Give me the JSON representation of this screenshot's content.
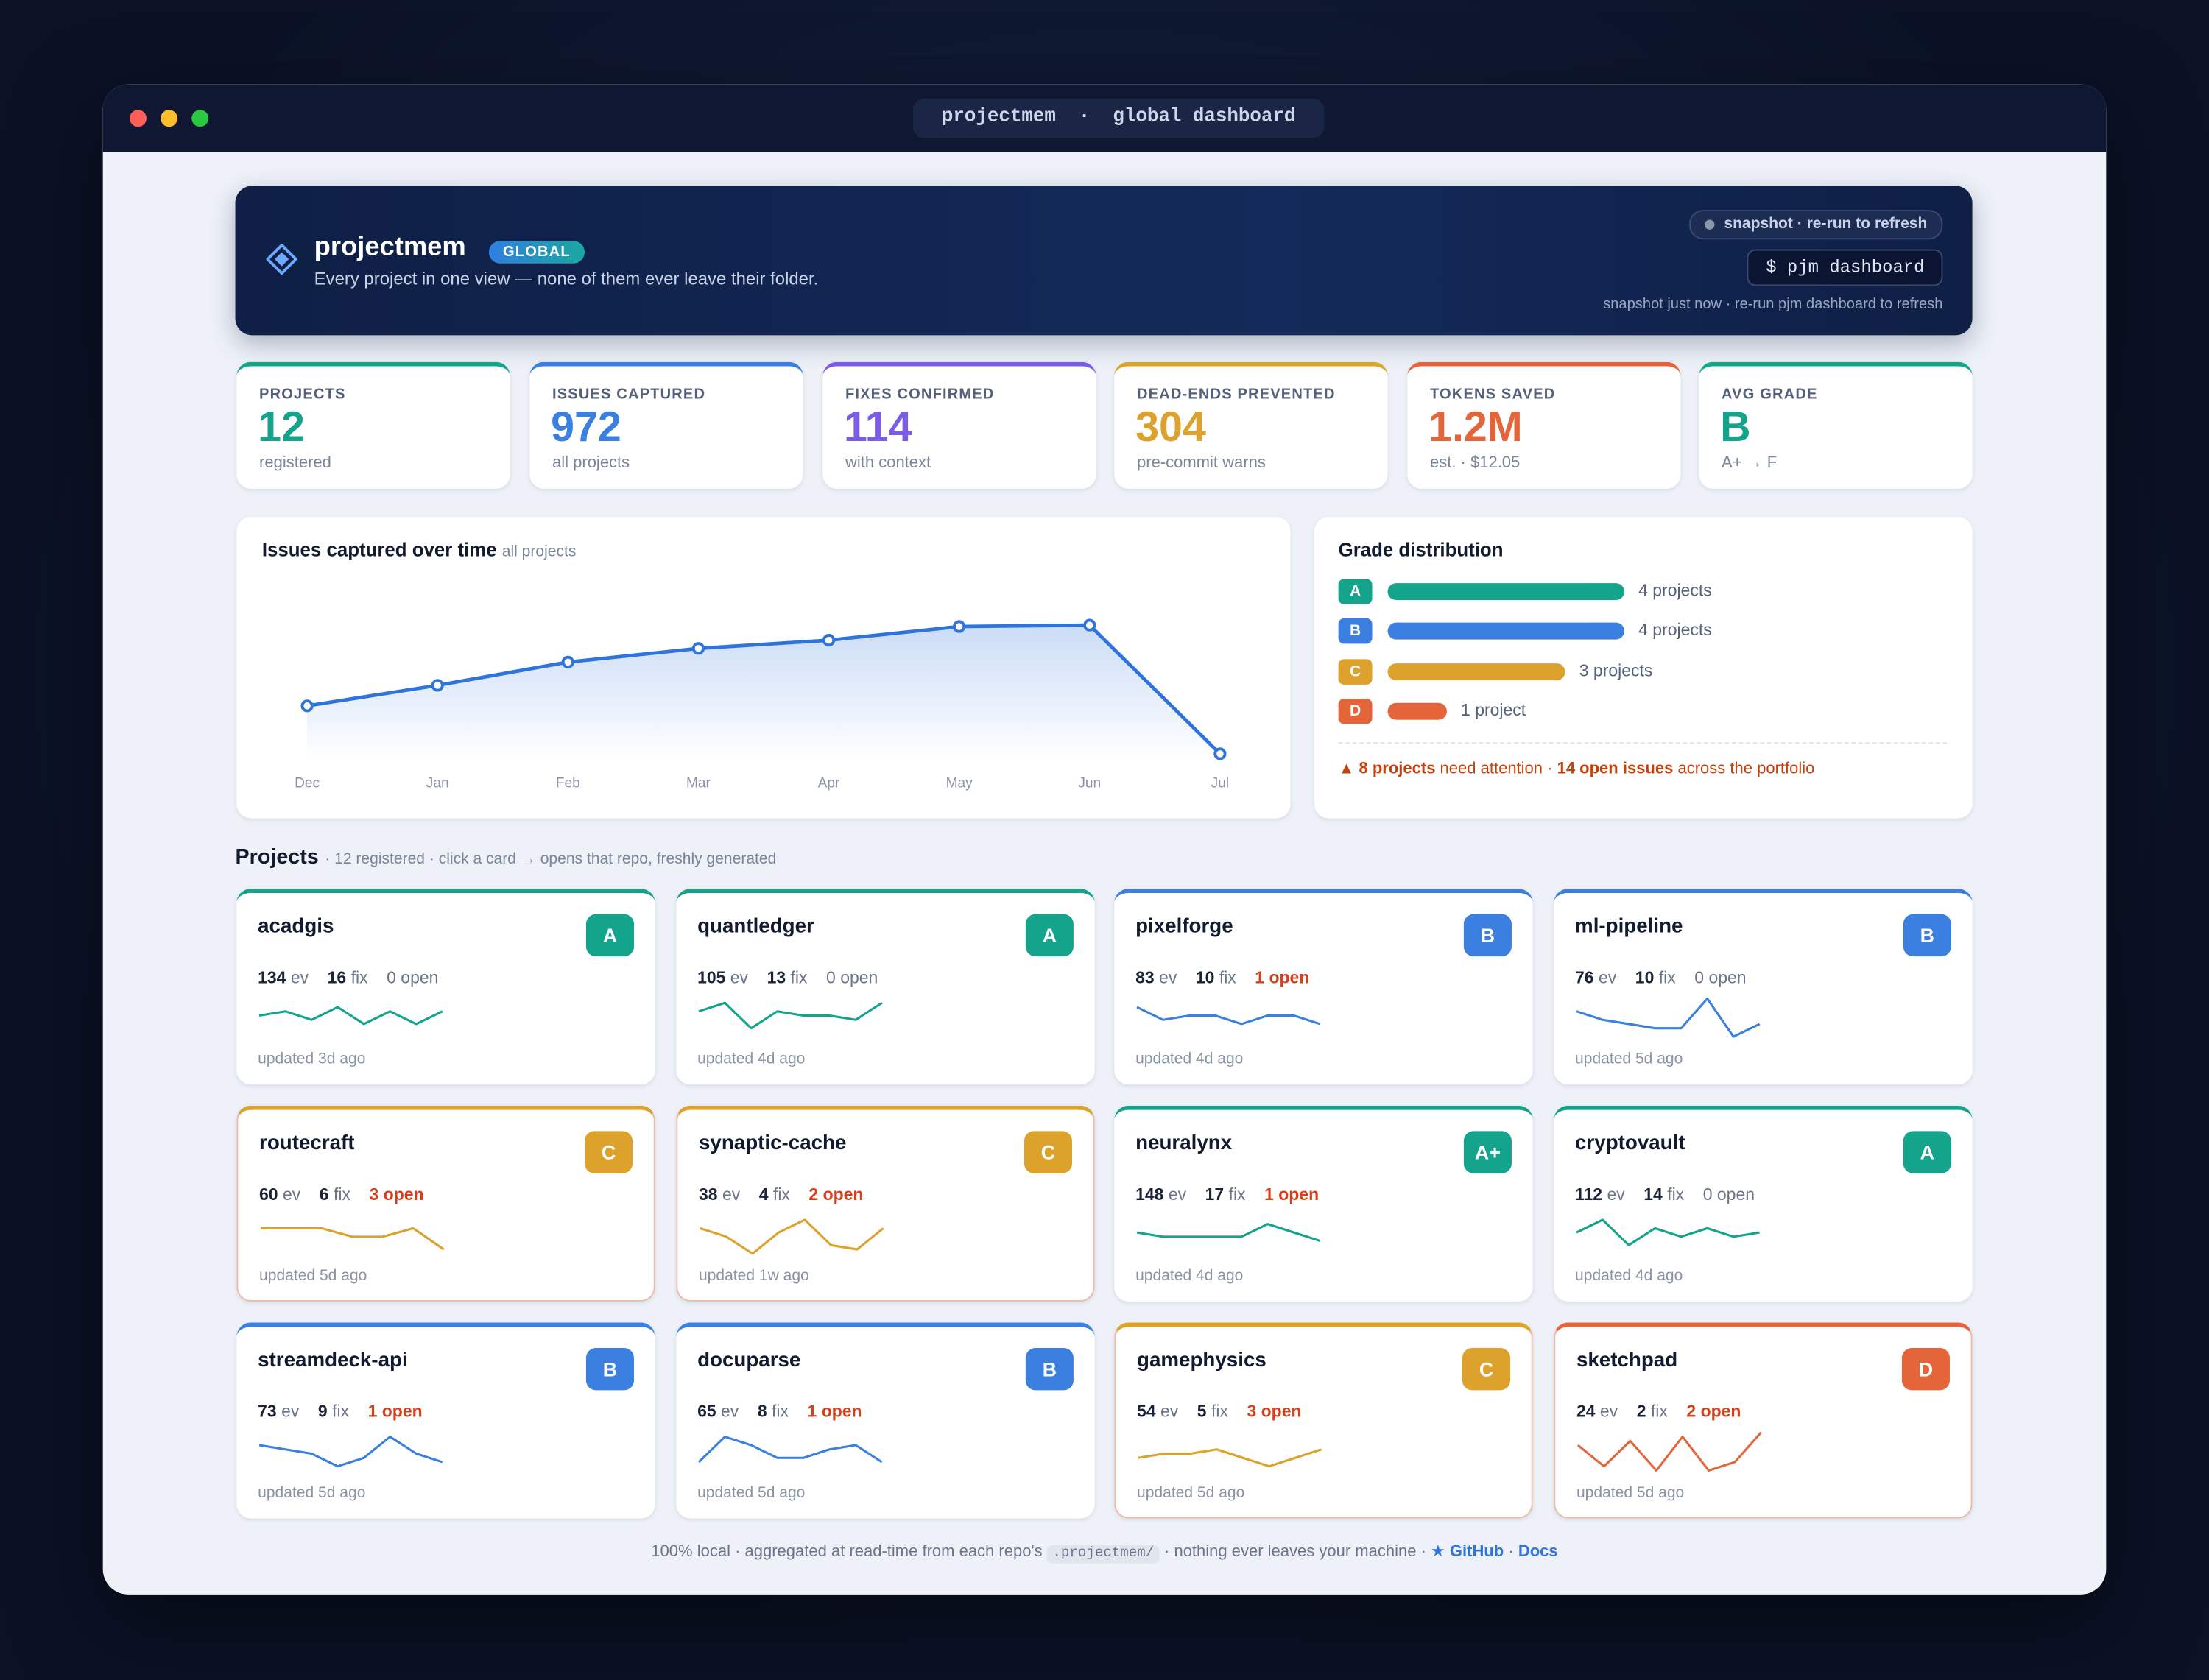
{
  "window": {
    "title": "projectmem  ·  global dashboard"
  },
  "header": {
    "title": "projectmem",
    "badge": "GLOBAL",
    "subtitle": "Every project in one view — none of them ever leave their folder.",
    "status": "snapshot · re-run to refresh",
    "command": "$ pjm dashboard",
    "note": "snapshot just now · re-run pjm dashboard to refresh"
  },
  "stats": [
    {
      "label": "PROJECTS",
      "value": "12",
      "sub": "registered",
      "color": "#14a38b"
    },
    {
      "label": "ISSUES CAPTURED",
      "value": "972",
      "sub": "all projects",
      "color": "#3b7fe0"
    },
    {
      "label": "FIXES CONFIRMED",
      "value": "114",
      "sub": "with context",
      "color": "#7c5ce6"
    },
    {
      "label": "DEAD-ENDS PREVENTED",
      "value": "304",
      "sub": "pre-commit warns",
      "color": "#dca22c"
    },
    {
      "label": "TOKENS SAVED",
      "value": "1.2M",
      "sub": "est. · $12.05",
      "color": "#e4653a"
    },
    {
      "label": "AVG GRADE",
      "value": "B",
      "sub": "A+ → F",
      "color": "#14a38b"
    }
  ],
  "chart_data": {
    "type": "line",
    "title": "Issues captured over time",
    "subtitle": "all projects",
    "categories": [
      "Dec",
      "Jan",
      "Feb",
      "Mar",
      "Apr",
      "May",
      "Jun",
      "Jul"
    ],
    "values": [
      40,
      55,
      72,
      82,
      88,
      98,
      99,
      5
    ],
    "color": "#2f74db",
    "ylim": [
      0,
      105
    ]
  },
  "grades": {
    "title": "Grade distribution",
    "max": 4,
    "rows": [
      {
        "grade": "A",
        "count": 4,
        "label": "4 projects",
        "color": "#14a38b"
      },
      {
        "grade": "B",
        "count": 4,
        "label": "4 projects",
        "color": "#3b7fe0"
      },
      {
        "grade": "C",
        "count": 3,
        "label": "3 projects",
        "color": "#dca22c"
      },
      {
        "grade": "D",
        "count": 1,
        "label": "1 project",
        "color": "#e4653a"
      }
    ],
    "attention": [
      "▲ ",
      "8 projects",
      " need attention · ",
      "14 open issues",
      " across the portfolio"
    ]
  },
  "projects_section": {
    "title": "Projects",
    "subtitle": "· 12 registered · click a card → opens that repo, freshly generated",
    "ev_label": "ev",
    "fix_label": "fix",
    "open_label": "open",
    "sparkline_ylim": [
      0,
      10
    ],
    "grade_colors": {
      "A+": "#14a38b",
      "A": "#14a38b",
      "B": "#3b7fe0",
      "C": "#dca22c",
      "D": "#e4653a"
    },
    "projects": [
      {
        "name": "acadgis",
        "grade": "A",
        "events": 134,
        "fixes": 16,
        "open": 0,
        "updated": "updated 3d ago",
        "trend": [
          5,
          6,
          4,
          7,
          3,
          6,
          3,
          6
        ]
      },
      {
        "name": "quantledger",
        "grade": "A",
        "events": 105,
        "fixes": 13,
        "open": 0,
        "updated": "updated 4d ago",
        "trend": [
          6,
          8,
          2,
          6,
          5,
          5,
          4,
          8
        ]
      },
      {
        "name": "pixelforge",
        "grade": "B",
        "events": 83,
        "fixes": 10,
        "open": 1,
        "updated": "updated 4d ago",
        "trend": [
          7,
          4,
          5,
          5,
          3,
          5,
          5,
          3
        ]
      },
      {
        "name": "ml-pipeline",
        "grade": "B",
        "events": 76,
        "fixes": 10,
        "open": 0,
        "updated": "updated 5d ago",
        "trend": [
          6,
          4,
          3,
          2,
          2,
          9,
          0,
          3
        ]
      },
      {
        "name": "routecraft",
        "grade": "C",
        "events": 60,
        "fixes": 6,
        "open": 3,
        "updated": "updated 5d ago",
        "trend": [
          6,
          6,
          6,
          4,
          4,
          6,
          1
        ]
      },
      {
        "name": "synaptic-cache",
        "grade": "C",
        "events": 38,
        "fixes": 4,
        "open": 2,
        "updated": "updated 1w ago",
        "trend": [
          6,
          4,
          0,
          5,
          8,
          2,
          1,
          6
        ]
      },
      {
        "name": "neuralynx",
        "grade": "A+",
        "events": 148,
        "fixes": 17,
        "open": 1,
        "updated": "updated 4d ago",
        "trend": [
          5,
          4,
          4,
          4,
          4,
          7,
          5,
          3
        ]
      },
      {
        "name": "cryptovault",
        "grade": "A",
        "events": 112,
        "fixes": 14,
        "open": 0,
        "updated": "updated 4d ago",
        "trend": [
          5,
          8,
          2,
          6,
          4,
          6,
          4,
          5
        ]
      },
      {
        "name": "streamdeck-api",
        "grade": "B",
        "events": 73,
        "fixes": 9,
        "open": 1,
        "updated": "updated 5d ago",
        "trend": [
          6,
          5,
          4,
          1,
          3,
          8,
          4,
          2
        ]
      },
      {
        "name": "docuparse",
        "grade": "B",
        "events": 65,
        "fixes": 8,
        "open": 1,
        "updated": "updated 5d ago",
        "trend": [
          2,
          8,
          6,
          3,
          3,
          5,
          6,
          2
        ]
      },
      {
        "name": "gamephysics",
        "grade": "C",
        "events": 54,
        "fixes": 5,
        "open": 3,
        "updated": "updated 5d ago",
        "trend": [
          3,
          4,
          4,
          5,
          3,
          1,
          3,
          5
        ]
      },
      {
        "name": "sketchpad",
        "grade": "D",
        "events": 24,
        "fixes": 2,
        "open": 2,
        "updated": "updated 5d ago",
        "trend": [
          6,
          1,
          7,
          0,
          8,
          0,
          2,
          9
        ]
      }
    ]
  },
  "footer": {
    "text": "100% local · aggregated at read-time from each repo's",
    "code": ".projectmem/",
    "text2": "· nothing ever leaves your machine ·",
    "github": "★ GitHub",
    "sep": "·",
    "docs": "Docs"
  }
}
